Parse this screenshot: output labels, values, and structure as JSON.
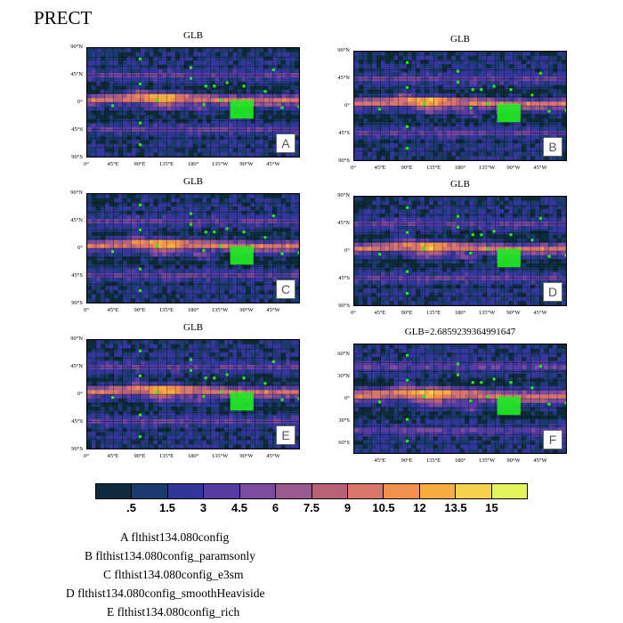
{
  "page_title": "PRECT",
  "colors": {
    "levels": [
      "#0d2b3a",
      "#1d3a70",
      "#34379a",
      "#553d9f",
      "#7c4a9e",
      "#9a5a8e",
      "#b86279",
      "#d9766c",
      "#f0904d",
      "#f7ad3f",
      "#f5d24d",
      "#e2f55a"
    ]
  },
  "colorbar": {
    "labels": [
      ".5",
      "1.5",
      "3",
      "4.5",
      "6",
      "7.5",
      "9",
      "10.5",
      "12",
      "13.5",
      "15"
    ]
  },
  "panels": [
    {
      "title": "GLB",
      "letter": "A",
      "lat_ticks": [
        "90°N",
        "45°N",
        "0°",
        "45°S",
        "90°S"
      ],
      "lon_ticks": [
        "0°",
        "45°E",
        "90°E",
        "135°E",
        "180°",
        "135°W",
        "90°W",
        "45°W"
      ]
    },
    {
      "title": "GLB",
      "letter": "B",
      "lat_ticks": [
        "90°N",
        "45°N",
        "0°",
        "45°S",
        "90°S"
      ],
      "lon_ticks": [
        "0°",
        "45°E",
        "90°E",
        "135°E",
        "180°",
        "135°W",
        "90°W",
        "45°W"
      ]
    },
    {
      "title": "GLB",
      "letter": "C",
      "lat_ticks": [
        "90°N",
        "45°N",
        "0°",
        "45°S",
        "90°S"
      ],
      "lon_ticks": [
        "0°",
        "45°E",
        "90°E",
        "135°E",
        "180°",
        "135°W",
        "90°W",
        "45°W"
      ]
    },
    {
      "title": "GLB",
      "letter": "D",
      "lat_ticks": [
        "90°N",
        "45°N",
        "0°",
        "45°S",
        "90°S"
      ],
      "lon_ticks": [
        "0°",
        "45°E",
        "90°E",
        "135°E",
        "180°",
        "135°W",
        "90°W",
        "45°W"
      ]
    },
    {
      "title": "GLB",
      "letter": "E",
      "lat_ticks": [
        "90°N",
        "45°N",
        "0°",
        "45°S",
        "90°S"
      ],
      "lon_ticks": [
        "0°",
        "45°E",
        "90°E",
        "135°E",
        "180°",
        "135°W",
        "90°W",
        "45°W"
      ]
    },
    {
      "title": "GLB=2.6859239364991647",
      "letter": "F",
      "lat_ticks": [
        "60°N",
        "30°N",
        "0°",
        "30°S",
        "60°S"
      ],
      "lon_ticks": [
        "45°E",
        "90°E",
        "135°E",
        "180°",
        "135°W",
        "90°W",
        "45°W"
      ]
    }
  ],
  "legend": [
    {
      "letter": "A",
      "name": "flthist134.080config"
    },
    {
      "letter": "B",
      "name": "flthist134.080config_paramsonly"
    },
    {
      "letter": "C",
      "name": "flthist134.080config_e3sm"
    },
    {
      "letter": "D",
      "name": "flthist134.080config_smoothHeaviside"
    },
    {
      "letter": "E",
      "name": "flthist134.080config_rich"
    }
  ],
  "chart_data": {
    "type": "heatmap",
    "title": "PRECT",
    "variable": "PRECT",
    "colorbar_levels": [
      0.5,
      1.5,
      3,
      4.5,
      6,
      7.5,
      9,
      10.5,
      12,
      13.5,
      15
    ],
    "panels": [
      {
        "letter": "A",
        "title": "GLB",
        "lat_range": [
          -90,
          90
        ],
        "lon_ticks": [
          "0°",
          "45°E",
          "90°E",
          "135°E",
          "180°",
          "135°W",
          "90°W",
          "45°W"
        ]
      },
      {
        "letter": "B",
        "title": "GLB",
        "lat_range": [
          -90,
          90
        ],
        "lon_ticks": [
          "0°",
          "45°E",
          "90°E",
          "135°E",
          "180°",
          "135°W",
          "90°W",
          "45°W"
        ]
      },
      {
        "letter": "C",
        "title": "GLB",
        "lat_range": [
          -90,
          90
        ],
        "lon_ticks": [
          "0°",
          "45°E",
          "90°E",
          "135°E",
          "180°",
          "135°W",
          "90°W",
          "45°W"
        ]
      },
      {
        "letter": "D",
        "title": "GLB",
        "lat_range": [
          -90,
          90
        ],
        "lon_ticks": [
          "0°",
          "45°E",
          "90°E",
          "135°E",
          "180°",
          "135°W",
          "90°W",
          "45°W"
        ]
      },
      {
        "letter": "E",
        "title": "GLB",
        "lat_range": [
          -90,
          90
        ],
        "lon_ticks": [
          "0°",
          "45°E",
          "90°E",
          "135°E",
          "180°",
          "135°W",
          "90°W",
          "45°W"
        ]
      },
      {
        "letter": "F",
        "title": "GLB=2.6859239364991647",
        "lat_range": [
          -75,
          75
        ],
        "lon_ticks": [
          "45°E",
          "90°E",
          "135°E",
          "180°",
          "135°W",
          "90°W",
          "45°W"
        ]
      }
    ],
    "legend": [
      "A flthist134.080config",
      "B flthist134.080config_paramsonly",
      "C flthist134.080config_e3sm",
      "D flthist134.080config_smoothHeaviside",
      "E flthist134.080config_rich"
    ]
  }
}
